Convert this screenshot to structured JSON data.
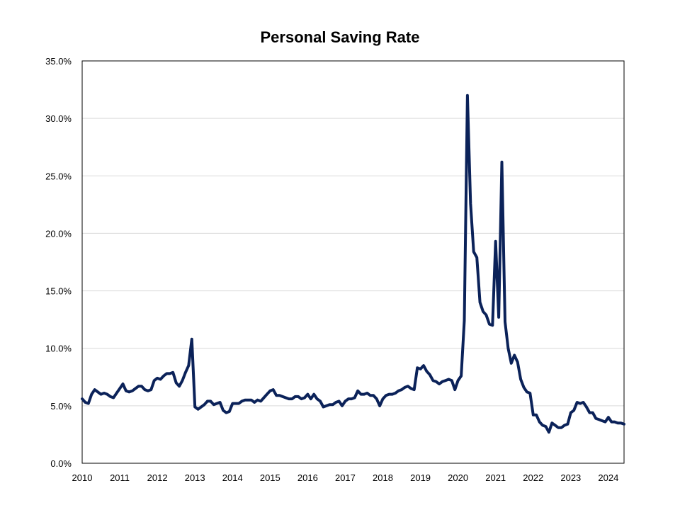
{
  "chart_data": {
    "type": "line",
    "title": "Personal Saving Rate",
    "xlabel": "",
    "ylabel": "",
    "x_ticks": [
      "2010",
      "2011",
      "2012",
      "2013",
      "2014",
      "2015",
      "2016",
      "2017",
      "2018",
      "2019",
      "2020",
      "2021",
      "2022",
      "2023",
      "2024"
    ],
    "y_ticks": [
      "0.0%",
      "5.0%",
      "10.0%",
      "15.0%",
      "20.0%",
      "25.0%",
      "30.0%",
      "35.0%"
    ],
    "xlim": [
      "2010-01",
      "2024-06"
    ],
    "ylim": [
      0,
      35
    ],
    "y_unit": "%",
    "grid": "horizontal",
    "line_color": "#0b2259",
    "grid_color": "#d9d9d9",
    "series": [
      {
        "x": [
          "2010-01",
          "2010-02",
          "2010-03",
          "2010-04",
          "2010-05",
          "2010-06",
          "2010-07",
          "2010-08",
          "2010-09",
          "2010-10",
          "2010-11",
          "2010-12",
          "2011-01",
          "2011-02",
          "2011-03",
          "2011-04",
          "2011-05",
          "2011-06",
          "2011-07",
          "2011-08",
          "2011-09",
          "2011-10",
          "2011-11",
          "2011-12",
          "2012-01",
          "2012-02",
          "2012-03",
          "2012-04",
          "2012-05",
          "2012-06",
          "2012-07",
          "2012-08",
          "2012-09",
          "2012-10",
          "2012-11",
          "2012-12",
          "2013-01",
          "2013-02",
          "2013-03",
          "2013-04",
          "2013-05",
          "2013-06",
          "2013-07",
          "2013-08",
          "2013-09",
          "2013-10",
          "2013-11",
          "2013-12",
          "2014-01",
          "2014-02",
          "2014-03",
          "2014-04",
          "2014-05",
          "2014-06",
          "2014-07",
          "2014-08",
          "2014-09",
          "2014-10",
          "2014-11",
          "2014-12",
          "2015-01",
          "2015-02",
          "2015-03",
          "2015-04",
          "2015-05",
          "2015-06",
          "2015-07",
          "2015-08",
          "2015-09",
          "2015-10",
          "2015-11",
          "2015-12",
          "2016-01",
          "2016-02",
          "2016-03",
          "2016-04",
          "2016-05",
          "2016-06",
          "2016-07",
          "2016-08",
          "2016-09",
          "2016-10",
          "2016-11",
          "2016-12",
          "2017-01",
          "2017-02",
          "2017-03",
          "2017-04",
          "2017-05",
          "2017-06",
          "2017-07",
          "2017-08",
          "2017-09",
          "2017-10",
          "2017-11",
          "2017-12",
          "2018-01",
          "2018-02",
          "2018-03",
          "2018-04",
          "2018-05",
          "2018-06",
          "2018-07",
          "2018-08",
          "2018-09",
          "2018-10",
          "2018-11",
          "2018-12",
          "2019-01",
          "2019-02",
          "2019-03",
          "2019-04",
          "2019-05",
          "2019-06",
          "2019-07",
          "2019-08",
          "2019-09",
          "2019-10",
          "2019-11",
          "2019-12",
          "2020-01",
          "2020-02",
          "2020-03",
          "2020-04",
          "2020-05",
          "2020-06",
          "2020-07",
          "2020-08",
          "2020-09",
          "2020-10",
          "2020-11",
          "2020-12",
          "2021-01",
          "2021-02",
          "2021-03",
          "2021-04",
          "2021-05",
          "2021-06",
          "2021-07",
          "2021-08",
          "2021-09",
          "2021-10",
          "2021-11",
          "2021-12",
          "2022-01",
          "2022-02",
          "2022-03",
          "2022-04",
          "2022-05",
          "2022-06",
          "2022-07",
          "2022-08",
          "2022-09",
          "2022-10",
          "2022-11",
          "2022-12",
          "2023-01",
          "2023-02",
          "2023-03",
          "2023-04",
          "2023-05",
          "2023-06",
          "2023-07",
          "2023-08",
          "2023-09",
          "2023-10",
          "2023-11",
          "2023-12",
          "2024-01",
          "2024-02",
          "2024-03",
          "2024-04",
          "2024-05",
          "2024-06"
        ],
        "values": [
          5.6,
          5.3,
          5.2,
          6.0,
          6.4,
          6.2,
          6.0,
          6.1,
          6.0,
          5.8,
          5.7,
          6.1,
          6.5,
          6.9,
          6.3,
          6.2,
          6.3,
          6.5,
          6.7,
          6.7,
          6.4,
          6.3,
          6.4,
          7.2,
          7.4,
          7.3,
          7.6,
          7.8,
          7.8,
          7.9,
          7.0,
          6.7,
          7.2,
          7.9,
          8.5,
          10.8,
          4.9,
          4.7,
          4.9,
          5.1,
          5.4,
          5.4,
          5.1,
          5.2,
          5.3,
          4.6,
          4.4,
          4.5,
          5.2,
          5.2,
          5.2,
          5.4,
          5.5,
          5.5,
          5.5,
          5.3,
          5.5,
          5.4,
          5.7,
          6.0,
          6.3,
          6.4,
          5.9,
          5.9,
          5.8,
          5.7,
          5.6,
          5.6,
          5.8,
          5.8,
          5.6,
          5.7,
          6.0,
          5.6,
          6.0,
          5.6,
          5.4,
          4.9,
          5.0,
          5.1,
          5.1,
          5.3,
          5.4,
          5.0,
          5.4,
          5.6,
          5.6,
          5.7,
          6.3,
          6.0,
          6.0,
          6.1,
          5.9,
          5.9,
          5.6,
          5.0,
          5.6,
          5.9,
          6.0,
          6.0,
          6.1,
          6.3,
          6.4,
          6.6,
          6.7,
          6.5,
          6.4,
          8.3,
          8.2,
          8.5,
          8.0,
          7.7,
          7.2,
          7.1,
          6.9,
          7.1,
          7.2,
          7.3,
          7.2,
          6.4,
          7.2,
          7.6,
          12.4,
          32.0,
          22.6,
          18.4,
          17.9,
          14.0,
          13.2,
          12.9,
          12.1,
          12.0,
          19.3,
          12.7,
          26.2,
          12.3,
          10.0,
          8.7,
          9.4,
          8.8,
          7.3,
          6.6,
          6.2,
          6.1,
          4.2,
          4.2,
          3.6,
          3.3,
          3.2,
          2.7,
          3.5,
          3.3,
          3.1,
          3.1,
          3.3,
          3.4,
          4.4,
          4.6,
          5.3,
          5.2,
          5.3,
          4.9,
          4.4,
          4.4,
          3.9,
          3.8,
          3.7,
          3.6,
          4.0,
          3.6,
          3.6,
          3.5,
          3.5,
          3.4
        ]
      }
    ]
  }
}
